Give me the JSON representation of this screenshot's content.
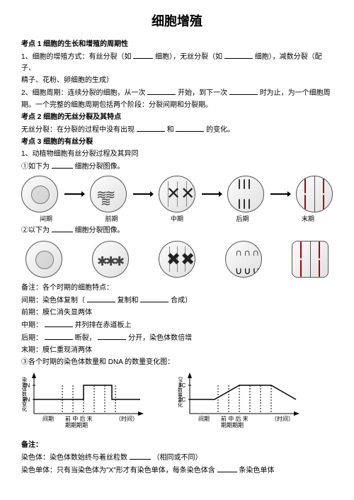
{
  "title": "细胞增殖",
  "topic1": {
    "heading": "考点 1  细胞的生长和增殖的周期性",
    "line1_prefix": "1、细胞的增殖方式：有丝分裂（如",
    "line1_mid1": "细胞），无丝分裂（如",
    "line1_mid2": "细胞），减数分裂（配子、",
    "line1_cont": "精子、花粉、卵细胞的生成）",
    "line2_prefix": "2、细胞周期：连续分裂的细胞，从一次",
    "line2_mid1": "开始，到下一次",
    "line2_mid2": "时为止，为一个细胞周",
    "line2_cont": "期。一个完整的细胞周期包括两个阶段：分裂间期和分裂期。"
  },
  "topic2": {
    "heading": "考点 2    细胞的无丝分裂及其特点",
    "line_prefix": "无丝分裂：在分裂的过程中没有出现",
    "line_mid": "和",
    "line_end": "的变化。"
  },
  "topic3": {
    "heading": "考点 3    细胞的有丝分裂",
    "line1": "1、动植物细胞有丝分裂过程及其异同",
    "line2_prefix": "①如下为",
    "line2_end": "细胞分裂图像。"
  },
  "phases": {
    "p1": "间期",
    "p2": "前期",
    "p3": "中期",
    "p4": "后期",
    "p5": "末期"
  },
  "row2_prefix": "②以下为",
  "row2_end": "细胞分裂图像。",
  "notes_heading": "备注：各个时期的细胞特点：",
  "notes": {
    "inter_prefix": "间期：染色体复制（",
    "inter_mid1": "复制和",
    "inter_end": "合成）",
    "pro": "前期：膜仁消失显两体",
    "meta_prefix": "中期：",
    "meta_end": "并列排在赤道板上",
    "ana_prefix": "后期：",
    "ana_mid1": "断裂，",
    "ana_end": "分开，染色体数倍增",
    "telo": "末期：膜仁重现消两体",
    "chart_intro": "③各个时期的染色体数量和 DNA 的数量变化图："
  },
  "chart1": {
    "ylabel": "染色体数量变化",
    "yticks": [
      "4N",
      "2N"
    ],
    "xticks": [
      "间期",
      "前 中 后 末",
      "（时间）"
    ],
    "xsub": "期期期期",
    "line": [
      [
        0,
        40
      ],
      [
        70,
        40
      ],
      [
        70,
        20
      ],
      [
        110,
        20
      ],
      [
        110,
        40
      ],
      [
        150,
        40
      ]
    ],
    "dash_x": [
      40,
      55,
      70,
      85,
      100,
      115
    ]
  },
  "chart2": {
    "ylabel": "DNA数量变化",
    "yticks": [
      "4C",
      "2C"
    ],
    "xticks": [
      "间期",
      "前 中 后 末",
      "（时间）"
    ],
    "xsub": "期期期期",
    "line": [
      [
        0,
        40
      ],
      [
        35,
        40
      ],
      [
        70,
        20
      ],
      [
        115,
        20
      ],
      [
        150,
        40
      ]
    ],
    "dash_x": [
      40,
      55,
      70,
      85,
      100,
      115
    ]
  },
  "footer": {
    "heading": "备注：",
    "l1_prefix": "染色体：染色体数始终与着丝粒数",
    "l1_end": "（相同或不同）",
    "l2_prefix": "染色单体：只有当染色体为\"X\"形才有染色单体，每条染色体含",
    "l2_end": "条染色单体"
  }
}
